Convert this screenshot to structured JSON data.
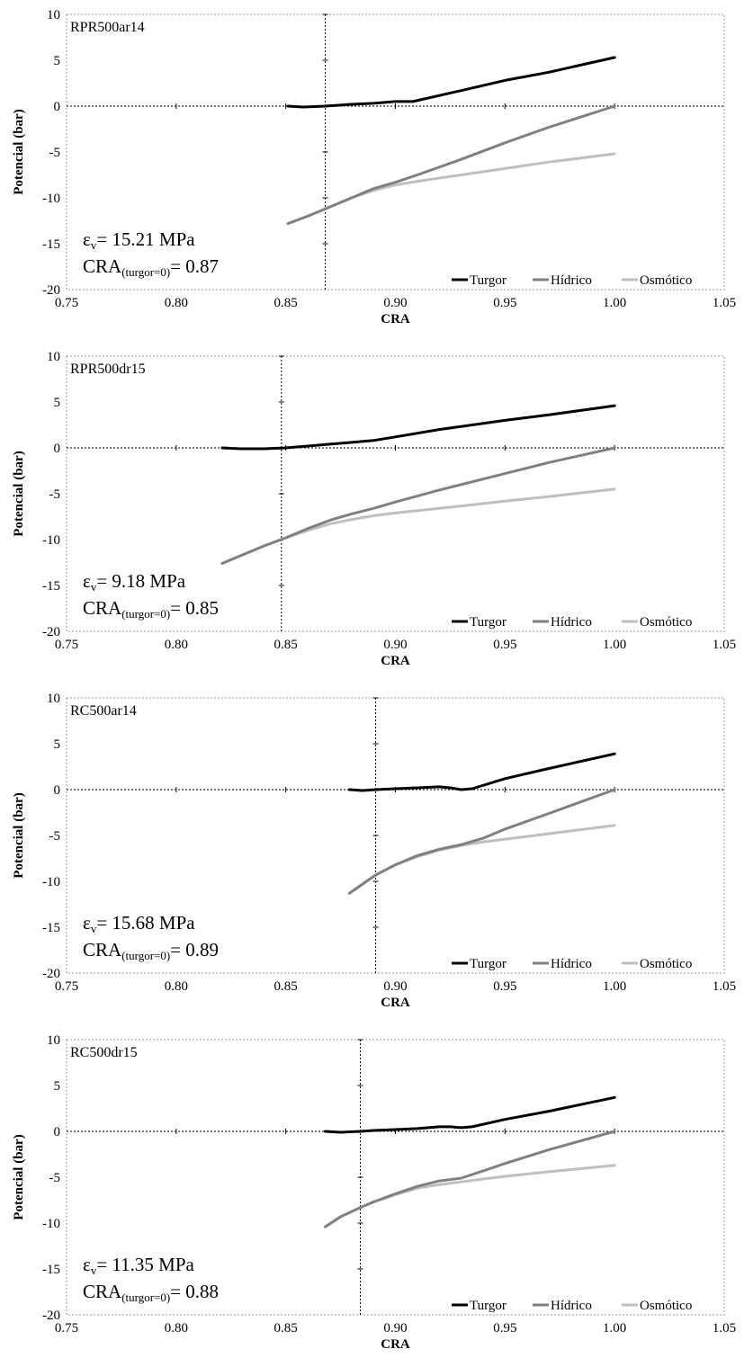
{
  "chart_data": [
    {
      "type": "line",
      "title": "RPR500ar14",
      "xlabel": "CRA",
      "ylabel": "Potencial (bar)",
      "xlim": [
        0.75,
        1.05
      ],
      "ylim": [
        -20,
        10
      ],
      "xticks": [
        "0.75",
        "0.80",
        "0.85",
        "0.90",
        "0.95",
        "1.00",
        "1.05"
      ],
      "yticks": [
        "10",
        "5",
        "0",
        "-5",
        "-10",
        "-15",
        "-20"
      ],
      "vline": 0.868,
      "annotation": {
        "ev_prefix": "ε",
        "ev_sub": "v",
        "ev_text": "= 15.21 MPa",
        "cra_prefix": "CRA",
        "cra_sub": "(turgor=0)",
        "cra_text": "= 0.87"
      },
      "legend_position": "bottom-right",
      "series": [
        {
          "name": "Turgor",
          "color": "#000000",
          "x": [
            0.851,
            0.858,
            0.868,
            0.88,
            0.89,
            0.9,
            0.908,
            0.93,
            0.95,
            0.97,
            1.0
          ],
          "y": [
            0.0,
            -0.1,
            0.0,
            0.2,
            0.3,
            0.5,
            0.5,
            1.7,
            2.8,
            3.7,
            5.3
          ]
        },
        {
          "name": "Hídrico",
          "color": "#808080",
          "x": [
            0.851,
            0.86,
            0.87,
            0.88,
            0.89,
            0.9,
            0.91,
            0.93,
            0.95,
            0.97,
            1.0
          ],
          "y": [
            -12.8,
            -12.0,
            -11.0,
            -10.0,
            -9.0,
            -8.3,
            -7.5,
            -5.8,
            -4.0,
            -2.3,
            0.0
          ]
        },
        {
          "name": "Osmótico",
          "color": "#bfbfbf",
          "x": [
            0.851,
            0.86,
            0.87,
            0.88,
            0.89,
            0.9,
            0.91,
            0.93,
            0.95,
            0.97,
            1.0
          ],
          "y": [
            -12.8,
            -12.0,
            -11.0,
            -10.0,
            -9.2,
            -8.6,
            -8.2,
            -7.5,
            -6.8,
            -6.1,
            -5.2
          ]
        }
      ]
    },
    {
      "type": "line",
      "title": "RPR500dr15",
      "xlabel": "CRA",
      "ylabel": "Potencial (bar)",
      "xlim": [
        0.75,
        1.05
      ],
      "ylim": [
        -20,
        10
      ],
      "xticks": [
        "0.75",
        "0.80",
        "0.85",
        "0.90",
        "0.95",
        "1.00",
        "1.05"
      ],
      "yticks": [
        "10",
        "5",
        "0",
        "-5",
        "-10",
        "-15",
        "-20"
      ],
      "vline": 0.848,
      "annotation": {
        "ev_prefix": "ε",
        "ev_sub": "v",
        "ev_text": "= 9.18 MPa",
        "cra_prefix": "CRA",
        "cra_sub": "(turgor=0)",
        "cra_text": "= 0.85"
      },
      "legend_position": "bottom-right",
      "series": [
        {
          "name": "Turgor",
          "color": "#000000",
          "x": [
            0.821,
            0.83,
            0.84,
            0.85,
            0.86,
            0.87,
            0.88,
            0.89,
            0.9,
            0.92,
            0.95,
            0.97,
            1.0
          ],
          "y": [
            0.0,
            -0.1,
            -0.1,
            0.0,
            0.2,
            0.4,
            0.6,
            0.8,
            1.2,
            2.0,
            3.0,
            3.6,
            4.6
          ]
        },
        {
          "name": "Hídrico",
          "color": "#808080",
          "x": [
            0.821,
            0.83,
            0.84,
            0.85,
            0.86,
            0.87,
            0.88,
            0.89,
            0.9,
            0.92,
            0.95,
            0.97,
            1.0
          ],
          "y": [
            -12.6,
            -11.7,
            -10.7,
            -9.8,
            -8.8,
            -7.9,
            -7.2,
            -6.6,
            -5.9,
            -4.6,
            -2.8,
            -1.6,
            0.0
          ]
        },
        {
          "name": "Osmótico",
          "color": "#bfbfbf",
          "x": [
            0.821,
            0.83,
            0.84,
            0.85,
            0.86,
            0.87,
            0.88,
            0.89,
            0.9,
            0.92,
            0.95,
            0.97,
            1.0
          ],
          "y": [
            -12.6,
            -11.7,
            -10.7,
            -9.8,
            -9.0,
            -8.3,
            -7.8,
            -7.4,
            -7.1,
            -6.6,
            -5.8,
            -5.3,
            -4.5
          ]
        }
      ]
    },
    {
      "type": "line",
      "title": "RC500ar14",
      "xlabel": "CRA",
      "ylabel": "Potencial (bar)",
      "xlim": [
        0.75,
        1.05
      ],
      "ylim": [
        -20,
        10
      ],
      "xticks": [
        "0.75",
        "0.80",
        "0.85",
        "0.90",
        "0.95",
        "1.00",
        "1.05"
      ],
      "yticks": [
        "10",
        "5",
        "0",
        "-5",
        "-10",
        "-15",
        "-20"
      ],
      "vline": 0.891,
      "annotation": {
        "ev_prefix": "ε",
        "ev_sub": "v",
        "ev_text": "= 15.68 MPa",
        "cra_prefix": "CRA",
        "cra_sub": "(turgor=0)",
        "cra_text": "= 0.89"
      },
      "legend_position": "bottom-right",
      "series": [
        {
          "name": "Turgor",
          "color": "#000000",
          "x": [
            0.879,
            0.885,
            0.891,
            0.9,
            0.91,
            0.92,
            0.925,
            0.93,
            0.935,
            0.95,
            0.97,
            1.0
          ],
          "y": [
            0.0,
            -0.1,
            0.0,
            0.1,
            0.2,
            0.3,
            0.2,
            0.0,
            0.1,
            1.2,
            2.3,
            3.9
          ]
        },
        {
          "name": "Hídrico",
          "color": "#808080",
          "x": [
            0.879,
            0.885,
            0.891,
            0.9,
            0.91,
            0.92,
            0.93,
            0.94,
            0.95,
            0.97,
            1.0
          ],
          "y": [
            -11.3,
            -10.3,
            -9.3,
            -8.2,
            -7.2,
            -6.5,
            -6.0,
            -5.3,
            -4.3,
            -2.6,
            0.0
          ]
        },
        {
          "name": "Osmótico",
          "color": "#bfbfbf",
          "x": [
            0.879,
            0.885,
            0.891,
            0.9,
            0.91,
            0.92,
            0.93,
            0.94,
            0.95,
            0.97,
            1.0
          ],
          "y": [
            -11.3,
            -10.3,
            -9.3,
            -8.2,
            -7.3,
            -6.6,
            -6.1,
            -5.7,
            -5.4,
            -4.8,
            -3.9
          ]
        }
      ]
    },
    {
      "type": "line",
      "title": "RC500dr15",
      "xlabel": "CRA",
      "ylabel": "Potencial (bar)",
      "xlim": [
        0.75,
        1.05
      ],
      "ylim": [
        -20,
        10
      ],
      "xticks": [
        "0.75",
        "0.80",
        "0.85",
        "0.90",
        "0.95",
        "1.00",
        "1.05"
      ],
      "yticks": [
        "10",
        "5",
        "0",
        "-5",
        "-10",
        "-15",
        "-20"
      ],
      "vline": 0.884,
      "annotation": {
        "ev_prefix": "ε",
        "ev_sub": "v",
        "ev_text": "= 11.35 MPa",
        "cra_prefix": "CRA",
        "cra_sub": "(turgor=0)",
        "cra_text": "= 0.88"
      },
      "legend_position": "bottom-right",
      "series": [
        {
          "name": "Turgor",
          "color": "#000000",
          "x": [
            0.868,
            0.875,
            0.884,
            0.89,
            0.9,
            0.91,
            0.92,
            0.925,
            0.93,
            0.935,
            0.95,
            0.97,
            1.0
          ],
          "y": [
            0.0,
            -0.1,
            0.0,
            0.1,
            0.2,
            0.3,
            0.5,
            0.5,
            0.4,
            0.5,
            1.3,
            2.2,
            3.7
          ]
        },
        {
          "name": "Hídrico",
          "color": "#808080",
          "x": [
            0.868,
            0.875,
            0.884,
            0.89,
            0.9,
            0.91,
            0.92,
            0.93,
            0.94,
            0.95,
            0.97,
            1.0
          ],
          "y": [
            -10.4,
            -9.3,
            -8.3,
            -7.7,
            -6.8,
            -6.0,
            -5.4,
            -5.1,
            -4.3,
            -3.5,
            -2.0,
            0.0
          ]
        },
        {
          "name": "Osmótico",
          "color": "#bfbfbf",
          "x": [
            0.868,
            0.875,
            0.884,
            0.89,
            0.9,
            0.91,
            0.92,
            0.93,
            0.94,
            0.95,
            0.97,
            1.0
          ],
          "y": [
            -10.4,
            -9.3,
            -8.3,
            -7.7,
            -6.9,
            -6.2,
            -5.8,
            -5.5,
            -5.2,
            -4.9,
            -4.4,
            -3.7
          ]
        }
      ]
    }
  ]
}
